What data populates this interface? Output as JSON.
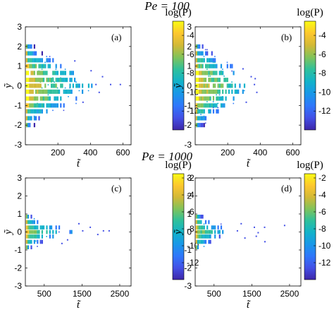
{
  "figure": {
    "row_titles": [
      "Pe = 100",
      "Pe = 1000"
    ]
  },
  "colormap": [
    "#3e26a8",
    "#4350e6",
    "#2f77fb",
    "#1997e8",
    "#12b2ca",
    "#2ec09c",
    "#80c35b",
    "#d2b936",
    "#fdc72e",
    "#f9fb14"
  ],
  "chart_data": [
    {
      "type": "heatmap",
      "panel_label": "(a)",
      "xlabel": "t̃",
      "ylabel": "ỹ",
      "xlim": [
        0,
        650
      ],
      "xticks": [
        200,
        400,
        600
      ],
      "ylim": [
        -3,
        3
      ],
      "yticks": [
        -3,
        -2,
        -1,
        0,
        1,
        2,
        3
      ],
      "colorbar": {
        "label": "log(P)",
        "range": [
          -14,
          -2.5
        ],
        "ticks": [
          -4,
          -6,
          -8,
          -10,
          -12
        ]
      },
      "bands": [
        {
          "y": 2.0,
          "t_end": 70,
          "log_p": -9
        },
        {
          "y": 1.65,
          "t_end": 110,
          "log_p": -8
        },
        {
          "y": 1.3,
          "t_end": 200,
          "log_p": -7
        },
        {
          "y": 1.0,
          "t_end": 260,
          "log_p": -6
        },
        {
          "y": 0.65,
          "t_end": 330,
          "log_p": -5
        },
        {
          "y": 0.3,
          "t_end": 380,
          "log_p": -5
        },
        {
          "y": 0.0,
          "t_end": 420,
          "log_p": -4.5
        },
        {
          "y": -0.3,
          "t_end": 390,
          "log_p": -5
        },
        {
          "y": -0.65,
          "t_end": 320,
          "log_p": -5
        },
        {
          "y": -1.0,
          "t_end": 250,
          "log_p": -6
        },
        {
          "y": -1.3,
          "t_end": 180,
          "log_p": -7
        },
        {
          "y": -1.65,
          "t_end": 100,
          "log_p": -8
        },
        {
          "y": -2.0,
          "t_end": 60,
          "log_p": -9
        }
      ],
      "outliers": [
        [
          430,
          0.1
        ],
        [
          470,
          0.5
        ],
        [
          520,
          0.1
        ],
        [
          580,
          0.1
        ],
        [
          450,
          -0.3
        ],
        [
          400,
          0.8
        ],
        [
          350,
          -0.8
        ],
        [
          300,
          1.3
        ]
      ]
    },
    {
      "type": "heatmap",
      "panel_label": "(b)",
      "xlabel": "t̃",
      "ylabel": "ỹ",
      "xlim": [
        0,
        650
      ],
      "xticks": [
        200,
        400,
        600
      ],
      "ylim": [
        -3,
        3
      ],
      "yticks": [
        -3,
        -2,
        -1,
        0,
        1,
        2,
        3
      ],
      "colorbar": {
        "label": "log(P)",
        "range": [
          -14,
          -2.5
        ],
        "ticks": [
          -4,
          -6,
          -8,
          -10,
          -12
        ]
      },
      "bands": [
        {
          "y": 2.0,
          "t_end": 70,
          "log_p": -9
        },
        {
          "y": 1.65,
          "t_end": 110,
          "log_p": -8
        },
        {
          "y": 1.3,
          "t_end": 180,
          "log_p": -7
        },
        {
          "y": 1.0,
          "t_end": 230,
          "log_p": -6
        },
        {
          "y": 0.65,
          "t_end": 290,
          "log_p": -5
        },
        {
          "y": 0.3,
          "t_end": 320,
          "log_p": -5
        },
        {
          "y": 0.0,
          "t_end": 350,
          "log_p": -4.5
        },
        {
          "y": -0.3,
          "t_end": 340,
          "log_p": -5
        },
        {
          "y": -0.65,
          "t_end": 280,
          "log_p": -5
        },
        {
          "y": -1.0,
          "t_end": 230,
          "log_p": -6
        },
        {
          "y": -1.3,
          "t_end": 170,
          "log_p": -7
        },
        {
          "y": -1.65,
          "t_end": 100,
          "log_p": -8
        },
        {
          "y": -2.0,
          "t_end": 60,
          "log_p": -9
        }
      ],
      "outliers": [
        [
          360,
          0.1
        ],
        [
          375,
          -0.3
        ],
        [
          340,
          0.5
        ],
        [
          310,
          -0.8
        ],
        [
          290,
          0.9
        ],
        [
          365,
          0.4
        ]
      ]
    },
    {
      "type": "heatmap",
      "panel_label": "(c)",
      "xlabel": "t̃",
      "ylabel": "ỹ",
      "xlim": [
        0,
        2800
      ],
      "xticks": [
        500,
        1500,
        2500
      ],
      "ylim": [
        -3,
        3
      ],
      "yticks": [
        -3,
        -2,
        -1,
        0,
        1,
        2,
        3
      ],
      "colorbar": {
        "label": "log(P)",
        "range": [
          -14,
          -1.5
        ],
        "ticks": [
          -2,
          -4,
          -6,
          -8,
          -10,
          -12
        ]
      },
      "bands": [
        {
          "y": 0.85,
          "t_end": 180,
          "log_p": -8
        },
        {
          "y": 0.55,
          "t_end": 500,
          "log_p": -7
        },
        {
          "y": 0.25,
          "t_end": 900,
          "log_p": -6
        },
        {
          "y": 0.0,
          "t_end": 1300,
          "log_p": -5
        },
        {
          "y": -0.25,
          "t_end": 850,
          "log_p": -6
        },
        {
          "y": -0.55,
          "t_end": 450,
          "log_p": -7
        },
        {
          "y": -0.85,
          "t_end": 160,
          "log_p": -8
        }
      ],
      "outliers": [
        [
          1500,
          0.1
        ],
        [
          1700,
          0.3
        ],
        [
          1900,
          -0.1
        ],
        [
          2050,
          0.1
        ],
        [
          2200,
          0.1
        ],
        [
          1100,
          -0.4
        ],
        [
          1400,
          0.5
        ],
        [
          950,
          -0.6
        ]
      ]
    },
    {
      "type": "heatmap",
      "panel_label": "(d)",
      "xlabel": "t̃",
      "ylabel": "ỹ",
      "xlim": [
        0,
        2800
      ],
      "xticks": [
        500,
        1500,
        2500
      ],
      "ylim": [
        -3,
        3
      ],
      "yticks": [
        -3,
        -2,
        -1,
        0,
        1,
        2,
        3
      ],
      "colorbar": {
        "label": "log(P)",
        "range": [
          -14,
          -1.5
        ],
        "ticks": [
          -2,
          -4,
          -6,
          -8,
          -10,
          -12
        ]
      },
      "bands": [
        {
          "y": 0.85,
          "t_end": 220,
          "log_p": -8
        },
        {
          "y": 0.55,
          "t_end": 480,
          "log_p": -7
        },
        {
          "y": 0.25,
          "t_end": 700,
          "log_p": -6
        },
        {
          "y": 0.0,
          "t_end": 850,
          "log_p": -5
        },
        {
          "y": -0.25,
          "t_end": 650,
          "log_p": -6
        },
        {
          "y": -0.55,
          "t_end": 420,
          "log_p": -7
        },
        {
          "y": -0.85,
          "t_end": 200,
          "log_p": -8
        }
      ],
      "outliers": [
        [
          1100,
          0.1
        ],
        [
          1300,
          -0.3
        ],
        [
          1550,
          0.3
        ],
        [
          1600,
          -0.2
        ],
        [
          1650,
          0.0
        ],
        [
          1820,
          0.3
        ],
        [
          1830,
          -0.5
        ],
        [
          2350,
          0.4
        ],
        [
          1200,
          0.5
        ]
      ]
    }
  ]
}
